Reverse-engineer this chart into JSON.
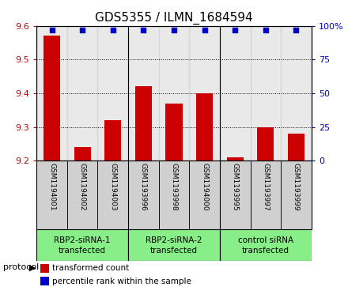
{
  "title": "GDS5355 / ILMN_1684594",
  "samples": [
    "GSM1194001",
    "GSM1194002",
    "GSM1194003",
    "GSM1193996",
    "GSM1193998",
    "GSM1194000",
    "GSM1193995",
    "GSM1193997",
    "GSM1193999"
  ],
  "transformed_counts": [
    9.57,
    9.24,
    9.32,
    9.42,
    9.37,
    9.4,
    9.21,
    9.3,
    9.28
  ],
  "percentile_ranks": [
    97,
    97,
    97,
    97,
    97,
    97,
    97,
    97,
    97
  ],
  "ylim_left": [
    9.2,
    9.6
  ],
  "ylim_right": [
    0,
    100
  ],
  "yticks_left": [
    9.2,
    9.3,
    9.4,
    9.5,
    9.6
  ],
  "yticks_right": [
    0,
    25,
    50,
    75,
    100
  ],
  "bar_color": "#cc0000",
  "dot_color": "#0000cc",
  "group_ranges": [
    [
      0,
      2
    ],
    [
      3,
      5
    ],
    [
      6,
      8
    ]
  ],
  "group_labels": [
    "RBP2-siRNA-1\ntransfected",
    "RBP2-siRNA-2\ntransfected",
    "control siRNA\ntransfected"
  ],
  "group_color": "#88ee88",
  "protocol_label": "protocol",
  "legend_items": [
    {
      "label": "transformed count",
      "color": "#cc0000"
    },
    {
      "label": "percentile rank within the sample",
      "color": "#0000cc"
    }
  ],
  "sample_bg_color": "#d0d0d0",
  "title_fontsize": 11,
  "tick_fontsize": 8,
  "label_fontsize": 8,
  "sample_fontsize": 6.5,
  "group_fontsize": 7.5
}
